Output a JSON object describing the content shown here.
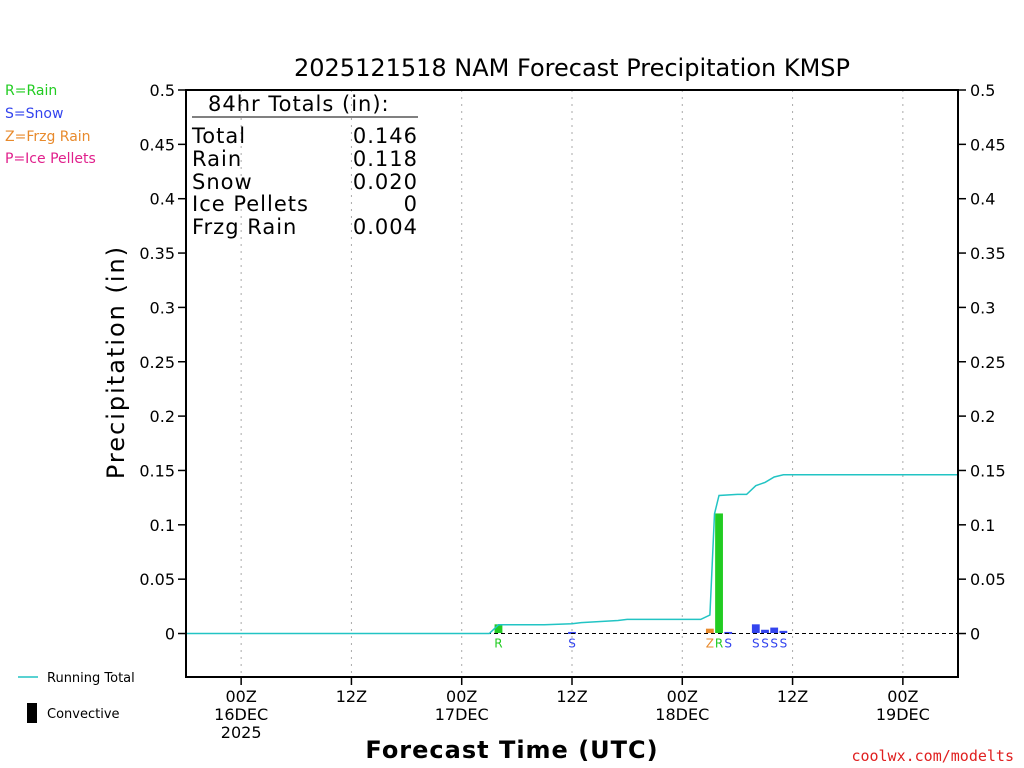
{
  "title": "2025121518 NAM Forecast Precipitation KMSP",
  "ylabel": "Precipitation  (in)",
  "xlabel": "Forecast Time (UTC)",
  "credit": "coolwx.com/modelts",
  "type_legend": [
    {
      "text": "R=Rain",
      "color": "#22cc22"
    },
    {
      "text": "S=Snow",
      "color": "#3344ee"
    },
    {
      "text": "Z=Frzg Rain",
      "color": "#e88a2c"
    },
    {
      "text": "P=Ice Pellets",
      "color": "#e0208c"
    }
  ],
  "bottom_legend": {
    "running_total": "Running Total",
    "convective": "Convective"
  },
  "totals": {
    "header": "84hr Totals (in):",
    "rows": [
      {
        "label": "Total",
        "value": "0.146"
      },
      {
        "label": "Rain",
        "value": "0.118"
      },
      {
        "label": "Snow",
        "value": "0.020"
      },
      {
        "label": "Ice Pellets",
        "value": "0"
      },
      {
        "label": "Frzg Rain",
        "value": "0.004"
      }
    ]
  },
  "colors": {
    "rain": "#22cc22",
    "snow": "#3344ee",
    "frzg": "#e88a2c",
    "ice": "#e0208c",
    "running_total": "#22c4c4",
    "grid": "#aaaaaa"
  },
  "chart_data": {
    "type": "bar",
    "title": "2025121518 NAM Forecast Precipitation KMSP",
    "xlabel": "Forecast Time (UTC)",
    "ylabel": "Precipitation  (in)",
    "x_unit": "forecast hour",
    "xlim": [
      0,
      84
    ],
    "ylim": [
      -0.04,
      0.5
    ],
    "yticks": [
      0,
      0.05,
      0.1,
      0.15,
      0.2,
      0.25,
      0.3,
      0.35,
      0.4,
      0.45,
      0.5
    ],
    "ytick_labels": [
      "0",
      "0.05",
      "0.1",
      "0.15",
      "0.2",
      "0.25",
      "0.3",
      "0.35",
      "0.4",
      "0.45",
      "0.5"
    ],
    "xticks": [
      {
        "hour": 6,
        "lines": [
          "00Z",
          "16DEC",
          "2025"
        ]
      },
      {
        "hour": 18,
        "lines": [
          "12Z"
        ]
      },
      {
        "hour": 30,
        "lines": [
          "00Z",
          "17DEC"
        ]
      },
      {
        "hour": 42,
        "lines": [
          "12Z"
        ]
      },
      {
        "hour": 54,
        "lines": [
          "00Z",
          "18DEC"
        ]
      },
      {
        "hour": 66,
        "lines": [
          "12Z"
        ]
      },
      {
        "hour": 78,
        "lines": [
          "00Z",
          "19DEC"
        ]
      }
    ],
    "grid": true,
    "bars": [
      {
        "hour": 34,
        "value": 0.008,
        "type": "rain"
      },
      {
        "hour": 42,
        "value": 0.001,
        "type": "snow"
      },
      {
        "hour": 57,
        "value": 0.004,
        "type": "frzg"
      },
      {
        "hour": 58,
        "value": 0.11,
        "type": "rain"
      },
      {
        "hour": 59,
        "value": 0.001,
        "type": "snow"
      },
      {
        "hour": 62,
        "value": 0.008,
        "type": "snow"
      },
      {
        "hour": 63,
        "value": 0.003,
        "type": "snow"
      },
      {
        "hour": 64,
        "value": 0.005,
        "type": "snow"
      },
      {
        "hour": 65,
        "value": 0.002,
        "type": "snow"
      }
    ],
    "ptype_labels": [
      {
        "hour": 34,
        "text": "R",
        "type": "rain"
      },
      {
        "hour": 42,
        "text": "S",
        "type": "snow"
      },
      {
        "hour": 57,
        "text": "Z",
        "type": "frzg"
      },
      {
        "hour": 58,
        "text": "R",
        "type": "rain"
      },
      {
        "hour": 59,
        "text": "S",
        "type": "snow"
      },
      {
        "hour": 62,
        "text": "S",
        "type": "snow"
      },
      {
        "hour": 63,
        "text": "S",
        "type": "snow"
      },
      {
        "hour": 64,
        "text": "S",
        "type": "snow"
      },
      {
        "hour": 65,
        "text": "S",
        "type": "snow"
      }
    ],
    "running_total": [
      [
        0,
        0
      ],
      [
        33,
        0
      ],
      [
        34,
        0.008
      ],
      [
        39,
        0.008
      ],
      [
        42,
        0.009
      ],
      [
        43,
        0.01
      ],
      [
        47,
        0.012
      ],
      [
        48,
        0.013
      ],
      [
        56,
        0.013
      ],
      [
        57,
        0.017
      ],
      [
        57.5,
        0.11
      ],
      [
        58,
        0.127
      ],
      [
        60,
        0.128
      ],
      [
        61,
        0.128
      ],
      [
        62,
        0.136
      ],
      [
        63,
        0.139
      ],
      [
        64,
        0.144
      ],
      [
        65,
        0.146
      ],
      [
        84,
        0.146
      ]
    ],
    "legend": [
      "Running Total",
      "Convective"
    ]
  }
}
